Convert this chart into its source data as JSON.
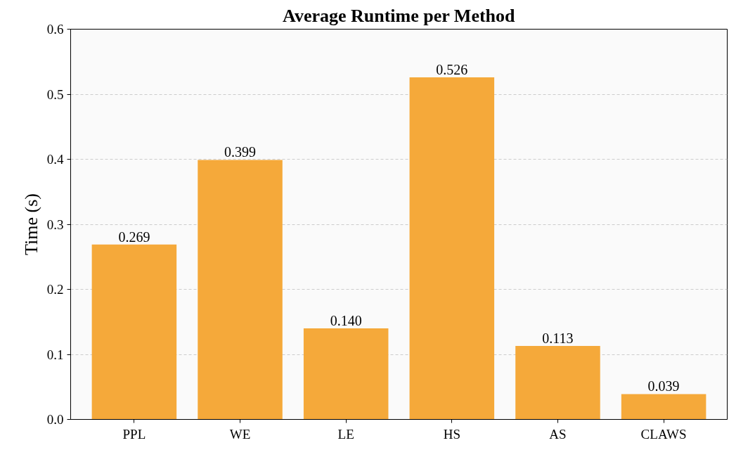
{
  "chart_data": {
    "type": "bar",
    "title": "Average Runtime per Method",
    "ylabel": "Time (s)",
    "categories": [
      "PPL",
      "WE",
      "LE",
      "HS",
      "AS",
      "CLAWS"
    ],
    "values": [
      0.269,
      0.399,
      0.14,
      0.526,
      0.113,
      0.039
    ],
    "value_labels": [
      "0.269",
      "0.399",
      "0.140",
      "0.526",
      "0.113",
      "0.039"
    ],
    "color": "#f5a93a",
    "ylim": [
      0,
      0.6
    ],
    "yticks": [
      {
        "value": 0,
        "label": "0.0"
      },
      0.1,
      0.2,
      0.3,
      0.4,
      0.5,
      0.6
    ],
    "grid": "y"
  }
}
